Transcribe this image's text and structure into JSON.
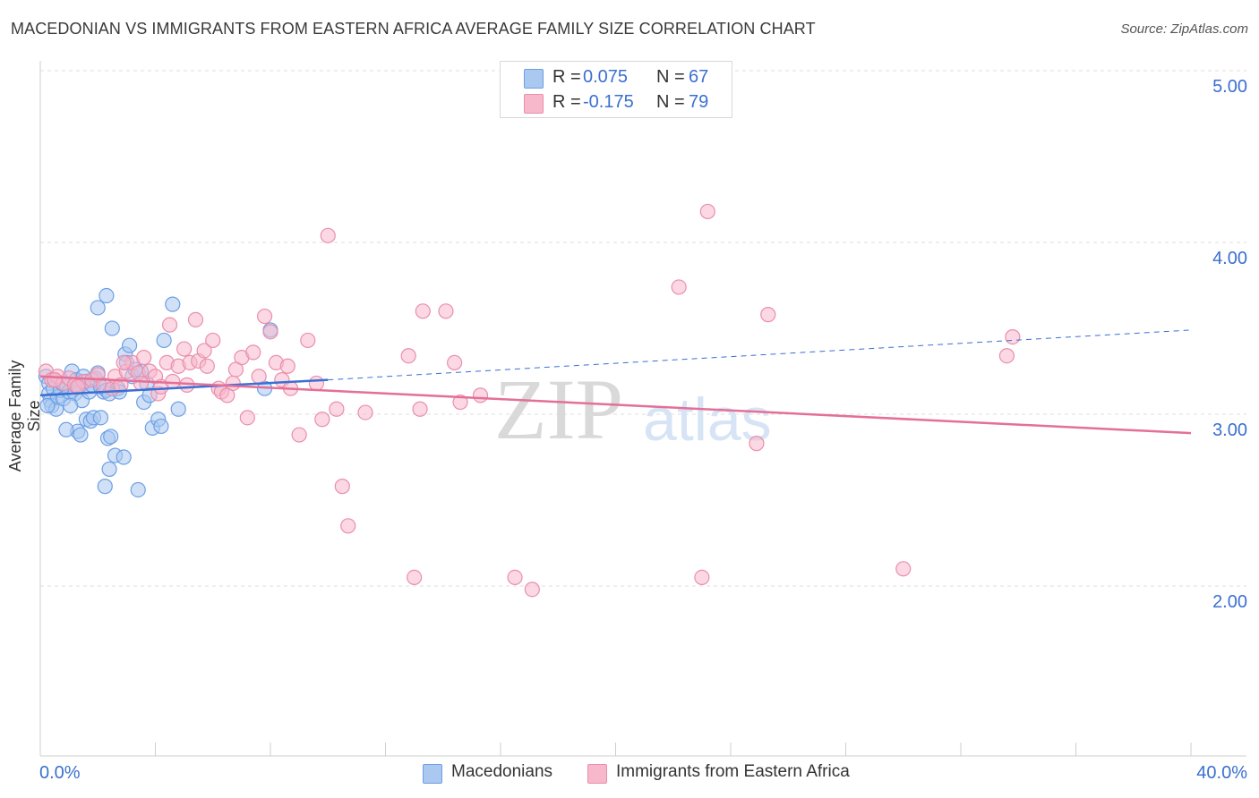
{
  "header": {
    "title": "MACEDONIAN VS IMMIGRANTS FROM EASTERN AFRICA AVERAGE FAMILY SIZE CORRELATION CHART",
    "source": "Source: ZipAtlas.com"
  },
  "legend": {
    "rows": [
      {
        "r_label": "R =",
        "r_value": "0.075",
        "n_label": "N =",
        "n_value": "67",
        "color": "#aac8f0"
      },
      {
        "r_label": "R =",
        "r_value": "-0.175",
        "n_label": "N =",
        "n_value": "79",
        "color": "#f7b8cc"
      }
    ]
  },
  "watermark": {
    "zip": "ZIP",
    "atlas": "atlas"
  },
  "chart_data": {
    "type": "scatter",
    "title": "MACEDONIAN VS IMMIGRANTS FROM EASTERN AFRICA AVERAGE FAMILY SIZE CORRELATION CHART",
    "xlabel": "",
    "ylabel": "Average Family Size",
    "xlim": [
      0,
      40
    ],
    "ylim": [
      1.0,
      5.1
    ],
    "x_tick_labels": [
      "0.0%",
      "40.0%"
    ],
    "y_ticks": [
      2.0,
      3.0,
      4.0,
      5.0
    ],
    "y_tick_labels": [
      "2.00",
      "3.00",
      "4.00",
      "5.00"
    ],
    "grid": true,
    "series": [
      {
        "name": "Macedonians",
        "color": "#6d9fe6",
        "fill": "#aac8f0",
        "trend_color": "#3a6fd3",
        "trend": {
          "x0": 0,
          "y0": 3.11,
          "x1": 10,
          "y1": 3.2,
          "dash_to_x": 40,
          "dash_to_y": 3.49
        },
        "points": [
          [
            0.2,
            3.22
          ],
          [
            0.3,
            3.18
          ],
          [
            0.3,
            3.12
          ],
          [
            0.35,
            3.08
          ],
          [
            0.4,
            3.05
          ],
          [
            0.45,
            3.15
          ],
          [
            0.5,
            3.2
          ],
          [
            0.55,
            3.03
          ],
          [
            0.6,
            3.1
          ],
          [
            0.7,
            3.14
          ],
          [
            0.75,
            3.18
          ],
          [
            0.8,
            3.09
          ],
          [
            0.9,
            3.17
          ],
          [
            1.0,
            3.13
          ],
          [
            1.1,
            3.25
          ],
          [
            1.2,
            3.12
          ],
          [
            1.25,
            3.2
          ],
          [
            1.35,
            3.16
          ],
          [
            1.45,
            3.08
          ],
          [
            1.5,
            3.22
          ],
          [
            1.6,
            3.19
          ],
          [
            1.7,
            3.13
          ],
          [
            1.8,
            3.17
          ],
          [
            1.9,
            3.21
          ],
          [
            2.0,
            3.24
          ],
          [
            2.1,
            3.16
          ],
          [
            2.2,
            3.13
          ],
          [
            2.3,
            3.14
          ],
          [
            2.4,
            3.12
          ],
          [
            1.3,
            2.9
          ],
          [
            1.4,
            2.88
          ],
          [
            1.6,
            2.97
          ],
          [
            1.75,
            2.96
          ],
          [
            1.85,
            2.98
          ],
          [
            2.1,
            2.98
          ],
          [
            0.9,
            2.91
          ],
          [
            2.35,
            2.86
          ],
          [
            2.45,
            2.87
          ],
          [
            2.25,
            2.58
          ],
          [
            2.4,
            2.68
          ],
          [
            2.6,
            2.76
          ],
          [
            2.9,
            2.75
          ],
          [
            3.4,
            2.56
          ],
          [
            2.0,
            3.62
          ],
          [
            2.3,
            3.69
          ],
          [
            2.5,
            3.5
          ],
          [
            2.7,
            3.15
          ],
          [
            2.95,
            3.35
          ],
          [
            3.0,
            3.3
          ],
          [
            3.1,
            3.4
          ],
          [
            3.2,
            3.22
          ],
          [
            3.5,
            3.25
          ],
          [
            3.6,
            3.07
          ],
          [
            3.7,
            3.18
          ],
          [
            3.8,
            3.11
          ],
          [
            3.9,
            2.92
          ],
          [
            4.1,
            2.97
          ],
          [
            4.2,
            2.93
          ],
          [
            4.3,
            3.43
          ],
          [
            4.6,
            3.64
          ],
          [
            4.8,
            3.03
          ],
          [
            8.0,
            3.49
          ],
          [
            7.8,
            3.15
          ],
          [
            0.25,
            3.05
          ],
          [
            1.05,
            3.05
          ],
          [
            2.75,
            3.13
          ],
          [
            3.3,
            3.26
          ]
        ]
      },
      {
        "name": "Immigrants from Eastern Africa",
        "color": "#ea8fab",
        "fill": "#f7b8cc",
        "trend_color": "#e46f98",
        "trend": {
          "x0": 0,
          "y0": 3.22,
          "x1": 40,
          "y1": 2.89
        },
        "points": [
          [
            0.2,
            3.25
          ],
          [
            0.4,
            3.2
          ],
          [
            0.6,
            3.22
          ],
          [
            0.8,
            3.18
          ],
          [
            1.0,
            3.21
          ],
          [
            1.2,
            3.17
          ],
          [
            1.5,
            3.19
          ],
          [
            1.8,
            3.2
          ],
          [
            2.0,
            3.23
          ],
          [
            2.2,
            3.17
          ],
          [
            2.5,
            3.15
          ],
          [
            2.6,
            3.22
          ],
          [
            2.8,
            3.17
          ],
          [
            3.0,
            3.25
          ],
          [
            3.2,
            3.3
          ],
          [
            3.4,
            3.24
          ],
          [
            3.5,
            3.18
          ],
          [
            3.6,
            3.33
          ],
          [
            3.8,
            3.25
          ],
          [
            4.0,
            3.22
          ],
          [
            4.1,
            3.12
          ],
          [
            4.2,
            3.16
          ],
          [
            4.4,
            3.3
          ],
          [
            4.5,
            3.52
          ],
          [
            4.6,
            3.19
          ],
          [
            4.8,
            3.28
          ],
          [
            5.0,
            3.38
          ],
          [
            5.1,
            3.17
          ],
          [
            5.2,
            3.3
          ],
          [
            5.4,
            3.55
          ],
          [
            5.5,
            3.31
          ],
          [
            5.7,
            3.37
          ],
          [
            5.8,
            3.28
          ],
          [
            6.0,
            3.43
          ],
          [
            6.2,
            3.15
          ],
          [
            6.3,
            3.13
          ],
          [
            6.5,
            3.11
          ],
          [
            6.7,
            3.18
          ],
          [
            7.0,
            3.33
          ],
          [
            7.2,
            2.98
          ],
          [
            7.4,
            3.36
          ],
          [
            7.6,
            3.22
          ],
          [
            7.8,
            3.57
          ],
          [
            8.0,
            3.48
          ],
          [
            8.2,
            3.3
          ],
          [
            8.4,
            3.2
          ],
          [
            8.6,
            3.28
          ],
          [
            8.7,
            3.15
          ],
          [
            9.0,
            2.88
          ],
          [
            9.3,
            3.43
          ],
          [
            9.6,
            3.18
          ],
          [
            9.8,
            2.97
          ],
          [
            10.0,
            4.04
          ],
          [
            10.3,
            3.03
          ],
          [
            10.5,
            2.58
          ],
          [
            10.7,
            2.35
          ],
          [
            11.3,
            3.01
          ],
          [
            12.8,
            3.34
          ],
          [
            13.0,
            2.05
          ],
          [
            13.2,
            3.03
          ],
          [
            13.3,
            3.6
          ],
          [
            14.1,
            3.6
          ],
          [
            14.4,
            3.3
          ],
          [
            14.6,
            3.07
          ],
          [
            15.3,
            3.11
          ],
          [
            16.5,
            2.05
          ],
          [
            17.1,
            1.98
          ],
          [
            22.2,
            3.74
          ],
          [
            23.0,
            2.05
          ],
          [
            23.2,
            4.18
          ],
          [
            24.9,
            2.83
          ],
          [
            25.3,
            3.58
          ],
          [
            30.0,
            2.1
          ],
          [
            33.6,
            3.34
          ],
          [
            33.8,
            3.45
          ],
          [
            6.8,
            3.26
          ],
          [
            2.9,
            3.3
          ],
          [
            1.3,
            3.16
          ],
          [
            0.5,
            3.2
          ]
        ]
      }
    ]
  }
}
